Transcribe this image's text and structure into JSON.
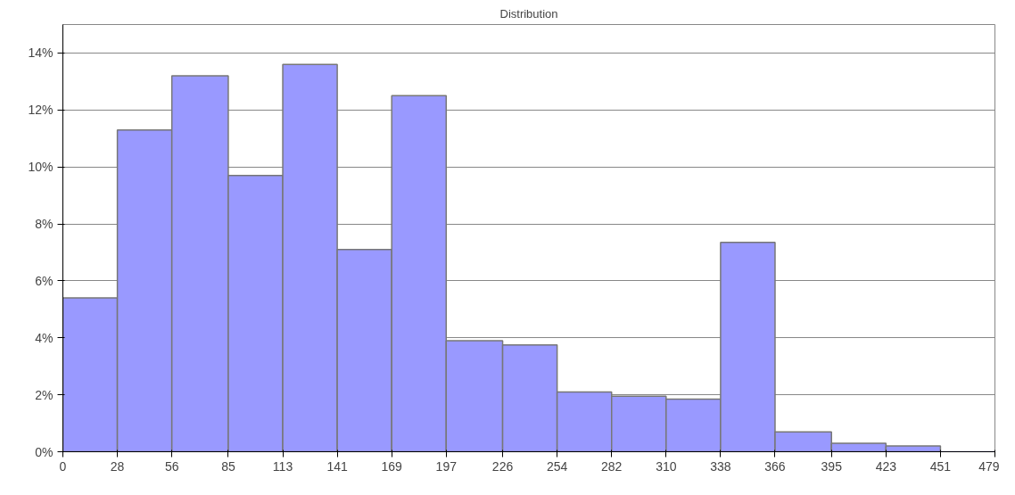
{
  "chart_data": {
    "type": "histogram",
    "title": "Distribution",
    "bins": [
      0,
      28,
      56,
      85,
      113,
      141,
      169,
      197,
      226,
      254,
      282,
      310,
      338,
      366,
      395,
      423,
      451,
      479
    ],
    "values": [
      5.4,
      11.3,
      13.2,
      9.7,
      13.6,
      7.1,
      12.5,
      3.9,
      3.75,
      2.1,
      1.95,
      1.85,
      7.35,
      0.7,
      0.3,
      0.2,
      0
    ],
    "color": "#9999ff",
    "xlim": [
      0,
      479
    ],
    "xticks": [
      0,
      28,
      56,
      85,
      113,
      141,
      169,
      197,
      226,
      254,
      282,
      310,
      338,
      366,
      395,
      423,
      451,
      479
    ],
    "ylim": [
      0,
      15
    ],
    "yticks": [
      {
        "value": 0,
        "label": "0%"
      },
      {
        "value": 2,
        "label": "2%"
      },
      {
        "value": 4,
        "label": "4%"
      },
      {
        "value": 6,
        "label": "6%"
      },
      {
        "value": 8,
        "label": "8%"
      },
      {
        "value": 10,
        "label": "10%"
      },
      {
        "value": 12,
        "label": "12%"
      },
      {
        "value": 14,
        "label": "14%"
      }
    ],
    "grid": "y"
  }
}
